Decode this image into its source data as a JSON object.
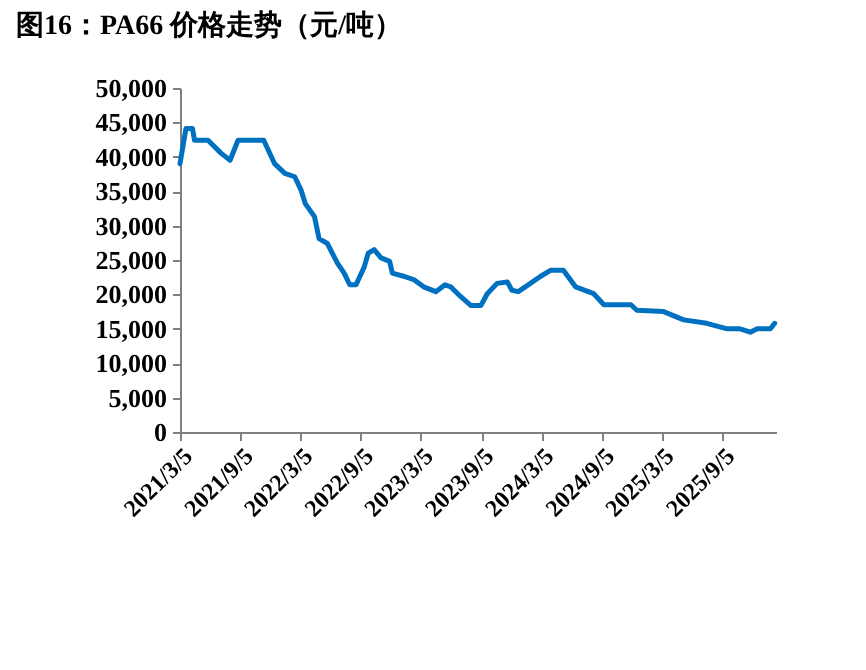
{
  "chart_data": {
    "type": "line",
    "title": "图16：PA66 价格走势（元/吨）",
    "x": [
      "2021-03-05",
      "2021-03-23",
      "2021-04-12",
      "2021-04-18",
      "2021-05-29",
      "2021-07-08",
      "2021-08-04",
      "2021-08-28",
      "2021-11-14",
      "2021-12-17",
      "2022-01-17",
      "2022-02-16",
      "2022-03-07",
      "2022-03-20",
      "2022-04-17",
      "2022-05-01",
      "2022-05-26",
      "2022-06-26",
      "2022-07-16",
      "2022-08-02",
      "2022-08-21",
      "2022-09-15",
      "2022-09-27",
      "2022-10-15",
      "2022-11-05",
      "2022-12-01",
      "2022-12-09",
      "2023-01-15",
      "2023-02-14",
      "2023-03-14",
      "2023-04-20",
      "2023-05-18",
      "2023-06-04",
      "2023-07-04",
      "2023-08-04",
      "2023-09-04",
      "2023-09-23",
      "2023-10-23",
      "2023-11-23",
      "2023-12-07",
      "2023-12-26",
      "2024-02-01",
      "2024-03-02",
      "2024-04-02",
      "2024-05-11",
      "2024-06-17",
      "2024-08-11",
      "2024-09-11",
      "2024-12-02",
      "2024-12-20",
      "2025-03-11",
      "2025-05-11",
      "2025-07-20",
      "2025-09-20",
      "2025-10-29",
      "2025-11-29",
      "2025-12-20",
      "2026-01-29",
      "2026-02-11"
    ],
    "series": [
      {
        "color": "#0070c0",
        "values": [
          39000,
          44100,
          44100,
          42400,
          42400,
          40500,
          39500,
          42400,
          42400,
          39000,
          37600,
          37100,
          35200,
          33200,
          31300,
          28100,
          27400,
          24500,
          23100,
          21400,
          21400,
          24000,
          26000,
          26500,
          25300,
          24800,
          23100,
          22600,
          22100,
          21100,
          20400,
          21400,
          21100,
          19700,
          18400,
          18400,
          20100,
          21600,
          21800,
          20600,
          20400,
          21600,
          22600,
          23500,
          23500,
          21100,
          20100,
          18500,
          18500,
          17700,
          17500,
          16300,
          15800,
          15000,
          15000,
          14500,
          15000,
          15000,
          15800
        ]
      }
    ],
    "xlim": [
      "2021-03-05",
      "2026-02-15"
    ],
    "xticks": [
      {
        "value": "2021-03-05",
        "label": "2021/3/5"
      },
      {
        "value": "2021-09-05",
        "label": "2021/9/5"
      },
      {
        "value": "2022-03-05",
        "label": "2022/3/5"
      },
      {
        "value": "2022-09-05",
        "label": "2022/9/5"
      },
      {
        "value": "2023-03-05",
        "label": "2023/3/5"
      },
      {
        "value": "2023-09-05",
        "label": "2023/9/5"
      },
      {
        "value": "2024-03-05",
        "label": "2024/3/5"
      },
      {
        "value": "2024-09-05",
        "label": "2024/9/5"
      },
      {
        "value": "2025-03-05",
        "label": "2025/3/5"
      },
      {
        "value": "2025-09-05",
        "label": "2025/9/5"
      }
    ],
    "ylim": [
      0,
      50000
    ],
    "yticks": [
      0,
      {
        "value": 5000,
        "label": "5,000"
      },
      {
        "value": 10000,
        "label": "10,000"
      },
      {
        "value": 15000,
        "label": "15,000"
      },
      {
        "value": 20000,
        "label": "20,000"
      },
      {
        "value": 25000,
        "label": "25,000"
      },
      {
        "value": 30000,
        "label": "30,000"
      },
      {
        "value": 35000,
        "label": "35,000"
      },
      {
        "value": 40000,
        "label": "40,000"
      },
      {
        "value": 45000,
        "label": "45,000"
      },
      {
        "value": 50000,
        "label": "50,000"
      }
    ],
    "grid": false,
    "marker": "none",
    "line_style": "solid"
  }
}
